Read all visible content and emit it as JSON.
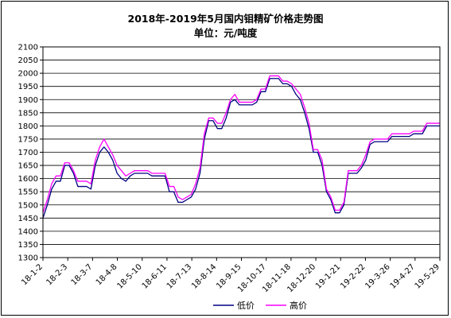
{
  "chart_data": {
    "type": "line",
    "title": "2018年-2019年5月国内钼精矿价格走势图",
    "subtitle": "单位：元/吨度",
    "xlabel": "",
    "ylabel": "",
    "ylim": [
      1300,
      2100
    ],
    "yticks": [
      1300,
      1350,
      1400,
      1450,
      1500,
      1550,
      1600,
      1650,
      1700,
      1750,
      1800,
      1850,
      1900,
      1950,
      2000,
      2050,
      2100
    ],
    "xtick_labels": [
      "18-1-2",
      "18-2-3",
      "18-3-7",
      "18-4-8",
      "18-5-10",
      "18-6-11",
      "18-7-13",
      "18-8-14",
      "18-9-15",
      "18-10-17",
      "18-11-18",
      "18-12-20",
      "19-1-21",
      "19-2-22",
      "19-3-26",
      "19-4-27",
      "19-5-29"
    ],
    "grid": "horizontal",
    "legend_position": "bottom-right",
    "series": [
      {
        "name": "低价",
        "color": "#000080",
        "values": [
          1450,
          1500,
          1560,
          1590,
          1590,
          1650,
          1650,
          1620,
          1570,
          1570,
          1570,
          1560,
          1650,
          1700,
          1720,
          1700,
          1670,
          1620,
          1600,
          1590,
          1610,
          1620,
          1620,
          1620,
          1620,
          1610,
          1610,
          1610,
          1610,
          1550,
          1550,
          1510,
          1510,
          1520,
          1530,
          1560,
          1620,
          1750,
          1820,
          1820,
          1790,
          1790,
          1830,
          1890,
          1900,
          1880,
          1880,
          1880,
          1880,
          1890,
          1930,
          1930,
          1980,
          1980,
          1980,
          1960,
          1960,
          1950,
          1920,
          1900,
          1850,
          1790,
          1700,
          1700,
          1650,
          1550,
          1520,
          1470,
          1470,
          1500,
          1620,
          1620,
          1620,
          1640,
          1670,
          1730,
          1740,
          1740,
          1740,
          1740,
          1760,
          1760,
          1760,
          1760,
          1760,
          1770,
          1770,
          1770,
          1800,
          1800,
          1800,
          1800
        ]
      },
      {
        "name": "高价",
        "color": "#ff00ff",
        "values": [
          1470,
          1520,
          1580,
          1610,
          1610,
          1660,
          1660,
          1630,
          1590,
          1590,
          1590,
          1580,
          1670,
          1720,
          1750,
          1720,
          1690,
          1650,
          1630,
          1610,
          1620,
          1630,
          1630,
          1630,
          1630,
          1620,
          1620,
          1620,
          1620,
          1570,
          1570,
          1530,
          1520,
          1530,
          1540,
          1580,
          1640,
          1770,
          1830,
          1830,
          1810,
          1810,
          1850,
          1900,
          1920,
          1890,
          1890,
          1890,
          1890,
          1900,
          1940,
          1940,
          1990,
          1990,
          1990,
          1970,
          1970,
          1960,
          1940,
          1920,
          1870,
          1810,
          1710,
          1710,
          1670,
          1560,
          1530,
          1480,
          1480,
          1510,
          1630,
          1630,
          1630,
          1650,
          1690,
          1740,
          1750,
          1750,
          1750,
          1750,
          1770,
          1770,
          1770,
          1770,
          1770,
          1780,
          1780,
          1780,
          1810,
          1810,
          1810,
          1810
        ]
      }
    ]
  }
}
